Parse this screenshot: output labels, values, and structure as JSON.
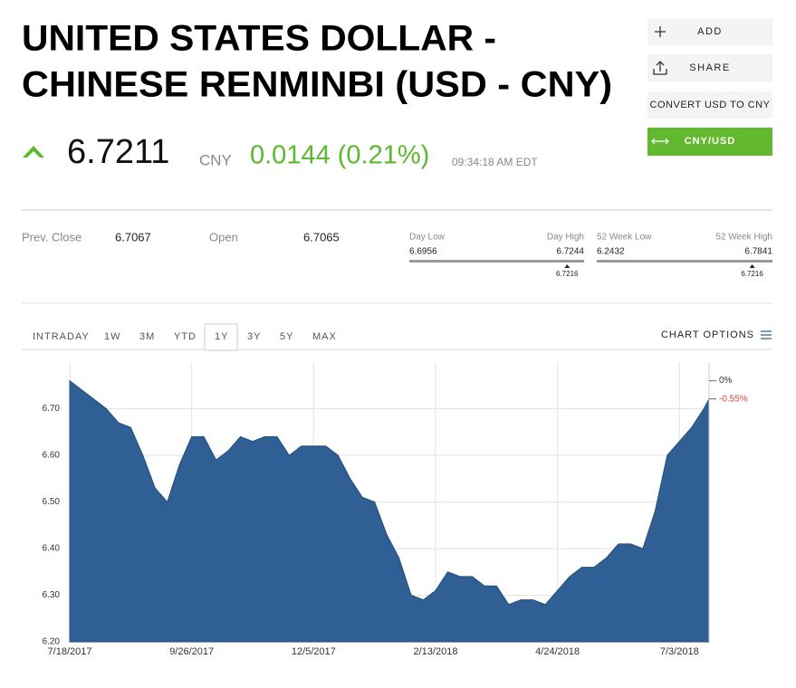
{
  "header": {
    "title_lines": [
      "UNITED STATES DOLLAR -",
      "CHINESE RENMINBI (USD - CNY)"
    ],
    "price": 6.7211,
    "currency": "CNY",
    "change": "0.0144 (0.21%)",
    "time": "09:34:18 AM EDT"
  },
  "buttons": [
    "ADD",
    "SHARE",
    "CONVERT USD TO CNY",
    "CNY/USD"
  ],
  "stats": {
    "prev_close_label": "Prev. Close",
    "prev_close": 6.7067,
    "open_label": "Open",
    "open": 6.7065,
    "ranges": [
      {
        "low_label": "Day Low",
        "high_label": "Day High",
        "low": 6.6956,
        "high": 6.7244,
        "current": 6.7216
      },
      {
        "low_label": "52 Week Low",
        "high_label": "52 Week High",
        "low": 6.2432,
        "high": 6.7841,
        "current": 6.7216
      }
    ]
  },
  "tabs": [
    "INTRADAY",
    "1W",
    "3M",
    "YTD",
    "1Y",
    "3Y",
    "5Y",
    "MAX"
  ],
  "selected_tab": "1Y",
  "chart_options": "CHART OPTIONS",
  "chart_data": {
    "type": "area",
    "color": "#2f5f95",
    "x": [
      "7/18/2017",
      "7/25/2017",
      "8/1/2017",
      "8/8/2017",
      "8/15/2017",
      "8/22/2017",
      "8/29/2017",
      "9/5/2017",
      "9/12/2017",
      "9/19/2017",
      "9/26/2017",
      "10/3/2017",
      "10/10/2017",
      "10/17/2017",
      "10/24/2017",
      "10/31/2017",
      "11/7/2017",
      "11/14/2017",
      "11/21/2017",
      "11/28/2017",
      "12/5/2017",
      "12/12/2017",
      "12/19/2017",
      "12/26/2017",
      "1/2/2018",
      "1/9/2018",
      "1/16/2018",
      "1/23/2018",
      "1/30/2018",
      "2/6/2018",
      "2/13/2018",
      "2/20/2018",
      "2/27/2018",
      "3/6/2018",
      "3/13/2018",
      "3/20/2018",
      "3/27/2018",
      "4/3/2018",
      "4/10/2018",
      "4/17/2018",
      "4/24/2018",
      "5/1/2018",
      "5/8/2018",
      "5/15/2018",
      "5/22/2018",
      "5/29/2018",
      "6/5/2018",
      "6/12/2018",
      "6/19/2018",
      "6/26/2018",
      "7/3/2018",
      "7/10/2018",
      "7/17/2018",
      "7/20/2018"
    ],
    "values": [
      6.76,
      6.74,
      6.72,
      6.7,
      6.67,
      6.66,
      6.6,
      6.53,
      6.5,
      6.58,
      6.64,
      6.64,
      6.59,
      6.61,
      6.64,
      6.63,
      6.64,
      6.64,
      6.6,
      6.62,
      6.62,
      6.62,
      6.6,
      6.55,
      6.51,
      6.5,
      6.43,
      6.38,
      6.3,
      6.29,
      6.31,
      6.35,
      6.34,
      6.34,
      6.32,
      6.32,
      6.28,
      6.29,
      6.29,
      6.28,
      6.31,
      6.34,
      6.36,
      6.36,
      6.38,
      6.41,
      6.41,
      6.4,
      6.48,
      6.6,
      6.63,
      6.66,
      6.7,
      6.7211
    ],
    "xlim": [
      "7/18/2017",
      "7/20/2018"
    ],
    "xticks": [
      "7/18/2017",
      "9/26/2017",
      "12/5/2017",
      "2/13/2018",
      "4/24/2018",
      "7/3/2018"
    ],
    "ylim": [
      6.2,
      6.8
    ],
    "yticks": [
      {
        "value": 6.2,
        "label": "6.20"
      },
      {
        "value": 6.3,
        "label": "6.30"
      },
      {
        "value": 6.4,
        "label": "6.40"
      },
      {
        "value": 6.5,
        "label": "6.50"
      },
      {
        "value": 6.6,
        "label": "6.60"
      },
      {
        "value": 6.7,
        "label": "6.70"
      }
    ],
    "grid": true,
    "annotations": [
      "0%",
      "-0.55%"
    ]
  }
}
